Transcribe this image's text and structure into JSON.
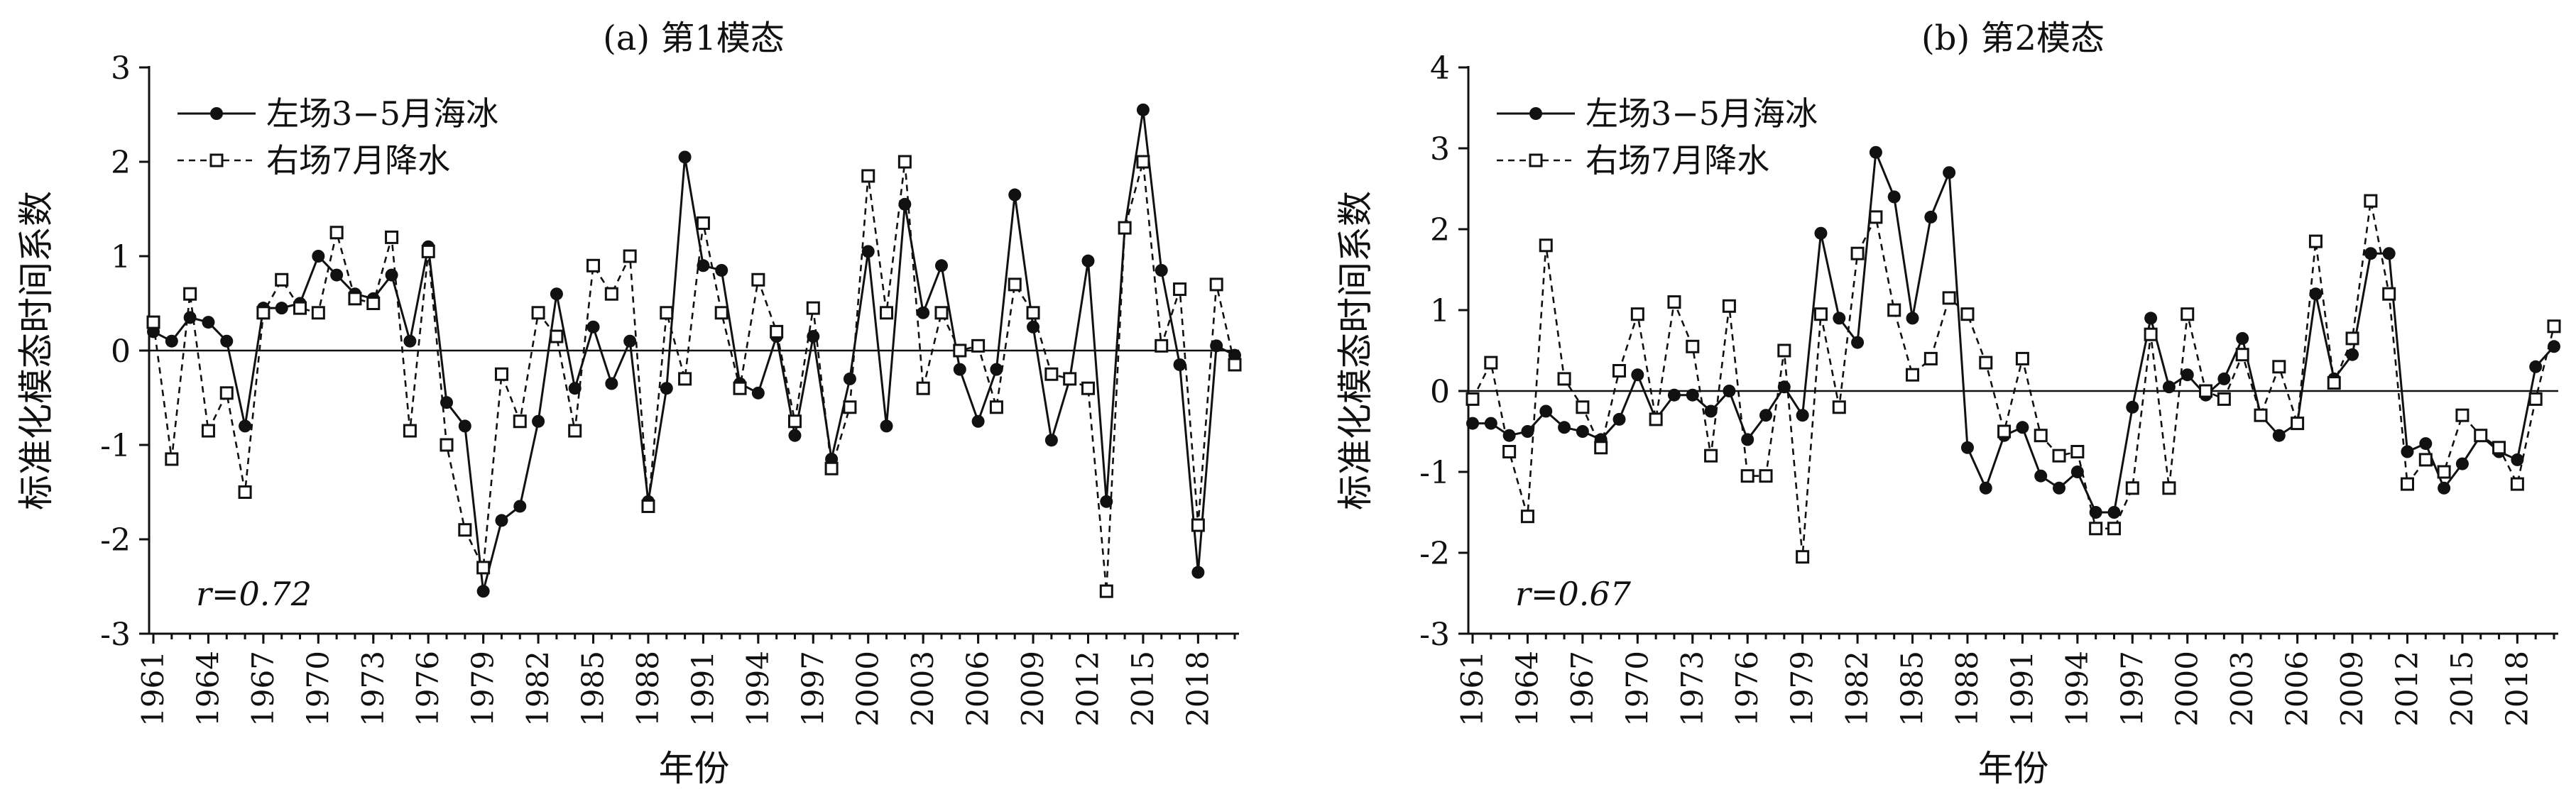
{
  "chart_data": [
    {
      "type": "line",
      "title": "(a) 第1模态",
      "xlabel": "年份",
      "ylabel": "标准化模态时间系数",
      "ylim": [
        -3,
        3
      ],
      "yticks": [
        "3",
        "2",
        "1",
        "0",
        "-1",
        "-2",
        "-3"
      ],
      "xticks": [
        "1961",
        "1964",
        "1967",
        "1970",
        "1973",
        "1976",
        "1979",
        "1982",
        "1985",
        "1988",
        "1991",
        "1994",
        "1997",
        "2000",
        "2003",
        "2006",
        "2009",
        "2012",
        "2015",
        "2018"
      ],
      "x": [
        1961,
        1962,
        1963,
        1964,
        1965,
        1966,
        1967,
        1968,
        1969,
        1970,
        1971,
        1972,
        1973,
        1974,
        1975,
        1976,
        1977,
        1978,
        1979,
        1980,
        1981,
        1982,
        1983,
        1984,
        1985,
        1986,
        1987,
        1988,
        1989,
        1990,
        1991,
        1992,
        1993,
        1994,
        1995,
        1996,
        1997,
        1998,
        1999,
        2000,
        2001,
        2002,
        2003,
        2004,
        2005,
        2006,
        2007,
        2008,
        2009,
        2010,
        2011,
        2012,
        2013,
        2014,
        2015,
        2016,
        2017,
        2018,
        2019,
        2020
      ],
      "annotation": "r=0.72",
      "legend_position": "top-left",
      "series": [
        {
          "name": "左场3−5月海冰",
          "style": "solid-dot",
          "values": [
            0.2,
            0.1,
            0.35,
            0.3,
            0.1,
            -0.8,
            0.45,
            0.45,
            0.5,
            1.0,
            0.8,
            0.6,
            0.55,
            0.8,
            0.1,
            1.1,
            -0.55,
            -0.8,
            -2.55,
            -1.8,
            -1.65,
            -0.75,
            0.6,
            -0.4,
            0.25,
            -0.35,
            0.1,
            -1.6,
            -0.4,
            2.05,
            0.9,
            0.85,
            -0.35,
            -0.45,
            0.15,
            -0.9,
            0.15,
            -1.15,
            -0.3,
            1.05,
            -0.8,
            1.55,
            0.4,
            0.9,
            -0.2,
            -0.75,
            -0.2,
            1.65,
            0.25,
            -0.95,
            -0.3,
            0.95,
            -1.6,
            1.3,
            2.55,
            0.85,
            -0.15,
            -2.35,
            0.05,
            -0.05
          ]
        },
        {
          "name": "右场7月降水",
          "style": "dashed-square",
          "values": [
            0.3,
            -1.15,
            0.6,
            -0.85,
            -0.45,
            -1.5,
            0.4,
            0.75,
            0.45,
            0.4,
            1.25,
            0.55,
            0.5,
            1.2,
            -0.85,
            1.05,
            -1.0,
            -1.9,
            -2.3,
            -0.25,
            -0.75,
            0.4,
            0.15,
            -0.85,
            0.9,
            0.6,
            1.0,
            -1.65,
            0.4,
            -0.3,
            1.35,
            0.4,
            -0.4,
            0.75,
            0.2,
            -0.75,
            0.45,
            -1.25,
            -0.6,
            1.85,
            0.4,
            2.0,
            -0.4,
            0.4,
            0.0,
            0.05,
            -0.6,
            0.7,
            0.4,
            -0.25,
            -0.3,
            -0.4,
            -2.55,
            1.3,
            2.0,
            0.05,
            0.65,
            -1.85,
            0.7,
            -0.15
          ]
        }
      ]
    },
    {
      "type": "line",
      "title": "(b) 第2模态",
      "xlabel": "年份",
      "ylabel": "标准化模态时间系数",
      "ylim": [
        -3,
        4
      ],
      "yticks": [
        "4",
        "3",
        "2",
        "1",
        "0",
        "-1",
        "-2",
        "-3"
      ],
      "xticks": [
        "1961",
        "1964",
        "1967",
        "1970",
        "1973",
        "1976",
        "1979",
        "1982",
        "1985",
        "1988",
        "1991",
        "1994",
        "1997",
        "2000",
        "2003",
        "2006",
        "2009",
        "2012",
        "2015",
        "2018"
      ],
      "x": [
        1961,
        1962,
        1963,
        1964,
        1965,
        1966,
        1967,
        1968,
        1969,
        1970,
        1971,
        1972,
        1973,
        1974,
        1975,
        1976,
        1977,
        1978,
        1979,
        1980,
        1981,
        1982,
        1983,
        1984,
        1985,
        1986,
        1987,
        1988,
        1989,
        1990,
        1991,
        1992,
        1993,
        1994,
        1995,
        1996,
        1997,
        1998,
        1999,
        2000,
        2001,
        2002,
        2003,
        2004,
        2005,
        2006,
        2007,
        2008,
        2009,
        2010,
        2011,
        2012,
        2013,
        2014,
        2015,
        2016,
        2017,
        2018,
        2019,
        2020
      ],
      "annotation": "r=0.67",
      "legend_position": "top-left",
      "series": [
        {
          "name": "左场3−5月海冰",
          "style": "solid-dot",
          "values": [
            -0.4,
            -0.4,
            -0.55,
            -0.5,
            -0.25,
            -0.45,
            -0.5,
            -0.6,
            -0.35,
            0.2,
            -0.35,
            -0.05,
            -0.05,
            -0.25,
            0.0,
            -0.6,
            -0.3,
            0.05,
            -0.3,
            1.95,
            0.9,
            0.6,
            2.95,
            2.4,
            0.9,
            2.15,
            2.7,
            -0.7,
            -1.2,
            -0.55,
            -0.45,
            -1.05,
            -1.2,
            -1.0,
            -1.5,
            -1.5,
            -0.2,
            0.9,
            0.05,
            0.2,
            -0.05,
            0.15,
            0.65,
            -0.3,
            -0.55,
            -0.4,
            1.2,
            0.15,
            0.45,
            1.7,
            1.7,
            -0.75,
            -0.65,
            -1.2,
            -0.9,
            -0.55,
            -0.75,
            -0.85,
            0.3,
            0.55
          ]
        },
        {
          "name": "右场7月降水",
          "style": "dashed-square",
          "values": [
            -0.1,
            0.35,
            -0.75,
            -1.55,
            1.8,
            0.15,
            -0.2,
            -0.7,
            0.25,
            0.95,
            -0.35,
            1.1,
            0.55,
            -0.8,
            1.05,
            -1.05,
            -1.05,
            0.5,
            -2.05,
            0.95,
            -0.2,
            1.7,
            2.15,
            1.0,
            0.2,
            0.4,
            1.15,
            0.95,
            0.35,
            -0.5,
            0.4,
            -0.55,
            -0.8,
            -0.75,
            -1.7,
            -1.7,
            -1.2,
            0.7,
            -1.2,
            0.95,
            0.0,
            -0.1,
            0.45,
            -0.3,
            0.3,
            -0.4,
            1.85,
            0.1,
            0.65,
            2.35,
            1.2,
            -1.15,
            -0.85,
            -1.0,
            -0.3,
            -0.55,
            -0.7,
            -1.15,
            -0.1,
            0.8
          ]
        }
      ]
    }
  ]
}
